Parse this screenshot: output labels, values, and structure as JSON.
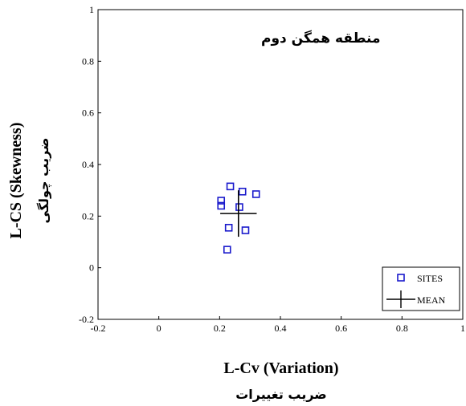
{
  "chart_data": {
    "type": "scatter",
    "title": "منطقه همگن دوم",
    "xlabel": "L-Cv (Variation)",
    "xlabel_sub": "ضریب تغییرات",
    "ylabel": "L-CS (Skewness)",
    "ylabel_sub": "ضریب چولگی",
    "xlim": [
      -0.2,
      1
    ],
    "ylim": [
      -0.2,
      1
    ],
    "xticks": [
      "-0.2",
      "0",
      "0.2",
      "0.4",
      "0.6",
      "0.8",
      "1"
    ],
    "yticks": [
      "-0.2",
      "0",
      "0.2",
      "0.4",
      "0.6",
      "0.8",
      "1"
    ],
    "grid": false,
    "legend_position": "bottom-right",
    "series": [
      {
        "name": "SITES",
        "color": "#1a1acc",
        "marker": "square",
        "points": [
          [
            0.235,
            0.315
          ],
          [
            0.205,
            0.26
          ],
          [
            0.205,
            0.24
          ],
          [
            0.275,
            0.295
          ],
          [
            0.32,
            0.285
          ],
          [
            0.265,
            0.235
          ],
          [
            0.23,
            0.155
          ],
          [
            0.285,
            0.145
          ],
          [
            0.225,
            0.07
          ]
        ]
      },
      {
        "name": "MEAN",
        "color": "#000000",
        "marker": "cross",
        "points": [
          [
            0.262,
            0.21
          ]
        ],
        "cross_half_width": 0.06,
        "cross_half_height": 0.09
      }
    ]
  }
}
